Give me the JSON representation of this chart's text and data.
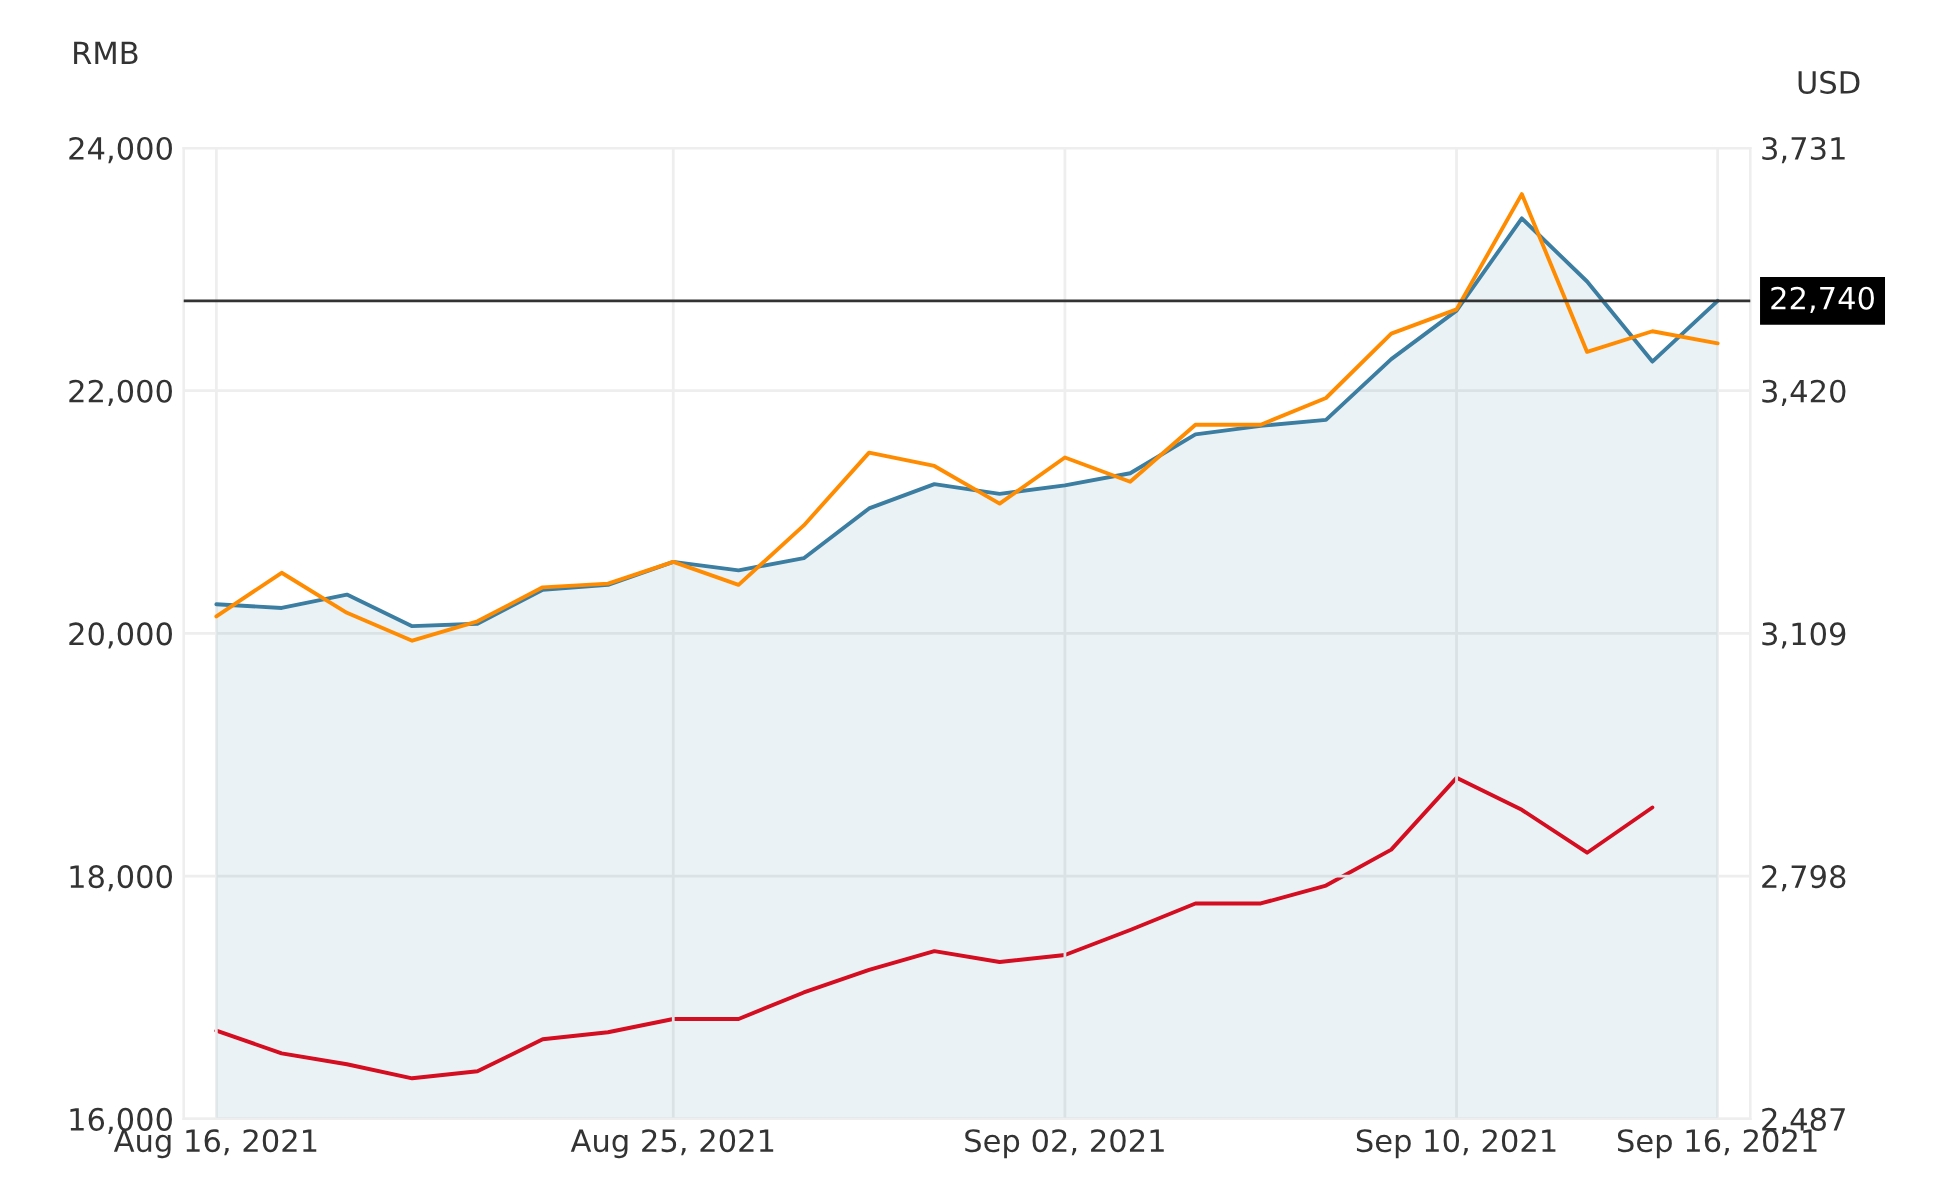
{
  "chart_data": {
    "type": "line",
    "ylabel": "RMB",
    "y2label": "USD",
    "categories": [
      "Aug 16, 2021",
      null,
      null,
      null,
      null,
      null,
      null,
      "Aug 25, 2021",
      null,
      null,
      null,
      null,
      null,
      "Sep 02, 2021",
      null,
      null,
      null,
      null,
      null,
      "Sep 10, 2021",
      null,
      null,
      null,
      "Sep 16, 2021"
    ],
    "series": [
      {
        "type": "area",
        "color": "#3b7ea1",
        "values": [
          20240,
          20210,
          20320,
          20060,
          20080,
          20360,
          20400,
          20590,
          20520,
          20620,
          21030,
          21230,
          21150,
          21220,
          21320,
          21640,
          21710,
          21760,
          22260,
          22660,
          23420,
          22900,
          22240,
          22740
        ]
      },
      {
        "color": "#ff8c00",
        "values": [
          20140,
          20500,
          20170,
          19940,
          20100,
          20380,
          20410,
          20590,
          20400,
          20890,
          21490,
          21380,
          21070,
          21450,
          21250,
          21720,
          21720,
          21940,
          22470,
          22670,
          23620,
          22320,
          22490,
          22390
        ]
      },
      {
        "color": "#e60012",
        "axis": "y2",
        "values": [
          2600,
          2571,
          2557,
          2539,
          2548,
          2589,
          2598,
          2615,
          2615,
          2649,
          2678,
          2702,
          2688,
          2697,
          2729,
          2763,
          2763,
          2786,
          2832,
          2924,
          2883,
          2828,
          2886,
          null
        ]
      }
    ],
    "ylim": [
      16000,
      24000
    ],
    "yticks": [
      {
        "value": 16000,
        "label": "16,000"
      },
      {
        "value": 18000,
        "label": "18,000"
      },
      {
        "value": 20000,
        "label": "20,000"
      },
      {
        "value": 22000,
        "label": "22,000"
      },
      {
        "value": 24000,
        "label": "24,000"
      }
    ],
    "y2lim": [
      2487,
      3731
    ],
    "y2ticks": [
      {
        "value": 2487,
        "label": "2,487"
      },
      {
        "value": 2798,
        "label": "2,798"
      },
      {
        "value": 3109,
        "label": "3,109"
      },
      {
        "value": 3420,
        "label": "3,420"
      },
      {
        "value": 3731,
        "label": "3,731"
      }
    ],
    "ref_lines": [
      {
        "axis": "y",
        "value": 22740,
        "label": "22,740",
        "color": "#333333"
      }
    ],
    "grid": true,
    "marker": "none",
    "line_style": "solid"
  }
}
